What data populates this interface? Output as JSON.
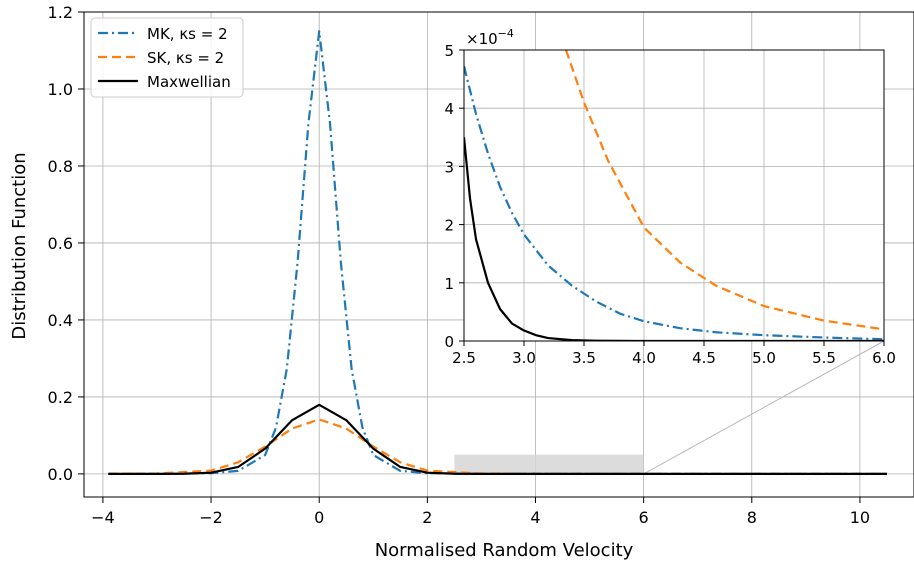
{
  "chart_data": [
    {
      "type": "line",
      "xlabel": "Normalised Random Velocity",
      "ylabel": "Distribution Function",
      "xlim": [
        -4.35,
        11.0
      ],
      "ylim": [
        -0.06,
        1.2
      ],
      "xticks": [
        -4,
        -2,
        0,
        2,
        4,
        6,
        8,
        10
      ],
      "xtick_labels": [
        "−4",
        "−2",
        "0",
        "2",
        "4",
        "6",
        "8",
        "10"
      ],
      "yticks": [
        0.0,
        0.2,
        0.4,
        0.6,
        0.8,
        1.0,
        1.2
      ],
      "ytick_labels": [
        "0.0",
        "0.2",
        "0.4",
        "0.6",
        "0.8",
        "1.0",
        "1.2"
      ],
      "grid": true,
      "legend_position": "top-left",
      "series": [
        {
          "name": "MK, κs = 2",
          "color": "#1f77b4",
          "style": "dash-dot",
          "x": [
            -3.9,
            -3,
            -2,
            -1.5,
            -1,
            -0.8,
            -0.6,
            -0.4,
            -0.2,
            0,
            0.2,
            0.4,
            0.6,
            0.8,
            1,
            1.5,
            2,
            3,
            4,
            6,
            8,
            10.5
          ],
          "y": [
            5e-05,
            0.0002,
            0.0019,
            0.0078,
            0.049,
            0.12,
            0.272,
            0.55,
            0.91,
            1.15,
            0.91,
            0.55,
            0.272,
            0.12,
            0.049,
            0.0078,
            0.0019,
            0.00016,
            3e-05,
            2e-06,
            3e-07,
            1e-07
          ]
        },
        {
          "name": "SK, κs = 2",
          "color": "#ff7f0e",
          "style": "dashed",
          "x": [
            -3.9,
            -3,
            -2,
            -1.5,
            -1,
            -0.5,
            0,
            0.5,
            1,
            1.5,
            2,
            3,
            4,
            6,
            8,
            10.5
          ],
          "y": [
            0.0002,
            0.001,
            0.0086,
            0.03,
            0.071,
            0.118,
            0.1415,
            0.118,
            0.071,
            0.03,
            0.0086,
            0.001,
            0.0002,
            2e-05,
            4e-06,
            1e-06
          ]
        },
        {
          "name": "Maxwellian",
          "color": "#000000",
          "style": "solid",
          "x": [
            -3.9,
            -3,
            -2.5,
            -2,
            -1.5,
            -1,
            -0.5,
            0,
            0.5,
            1,
            1.5,
            2,
            2.5,
            3,
            4,
            6,
            8,
            10.5
          ],
          "y": [
            1e-07,
            2.5e-05,
            0.00035,
            0.0032,
            0.018,
            0.0656,
            0.1396,
            0.1795,
            0.1396,
            0.0656,
            0.018,
            0.0032,
            0.00035,
            2.5e-05,
            1e-07,
            0,
            0,
            0
          ]
        }
      ],
      "zoom_region": {
        "x": [
          2.5,
          6.0
        ],
        "y": [
          0.0,
          0.0005
        ]
      }
    },
    {
      "type": "line",
      "role": "inset",
      "xlim": [
        2.5,
        6.0
      ],
      "ylim": [
        0,
        5
      ],
      "y_scale_label": "×10",
      "y_scale_exponent": "−4",
      "xticks": [
        2.5,
        3.0,
        3.5,
        4.0,
        4.5,
        5.0,
        5.5,
        6.0
      ],
      "xtick_labels": [
        "2.5",
        "3.0",
        "3.5",
        "4.0",
        "4.5",
        "5.0",
        "5.5",
        "6.0"
      ],
      "yticks": [
        0,
        1,
        2,
        3,
        4,
        5
      ],
      "ytick_labels": [
        "0",
        "1",
        "2",
        "3",
        "4",
        "5"
      ],
      "grid": true,
      "series": [
        {
          "name": "MK, κs = 2",
          "color": "#1f77b4",
          "style": "dash-dot",
          "x": [
            2.5,
            2.6,
            2.7,
            2.8,
            2.9,
            3.0,
            3.2,
            3.4,
            3.6,
            3.8,
            4.0,
            4.3,
            4.6,
            5.0,
            5.5,
            6.0
          ],
          "y": [
            4.72,
            3.9,
            3.22,
            2.65,
            2.2,
            1.83,
            1.3,
            0.95,
            0.68,
            0.47,
            0.34,
            0.22,
            0.15,
            0.1,
            0.06,
            0.03
          ]
        },
        {
          "name": "SK, κs = 2",
          "color": "#ff7f0e",
          "style": "dashed",
          "x": [
            3.35,
            3.5,
            3.7,
            4.0,
            4.3,
            4.6,
            5.0,
            5.5,
            6.0
          ],
          "y": [
            5.0,
            4.1,
            3.1,
            1.95,
            1.35,
            0.95,
            0.6,
            0.35,
            0.2
          ]
        },
        {
          "name": "Maxwellian",
          "color": "#000000",
          "style": "solid",
          "x": [
            2.5,
            2.55,
            2.6,
            2.7,
            2.8,
            2.9,
            3.0,
            3.1,
            3.2,
            3.4,
            3.6,
            4.0,
            5.0,
            6.0
          ],
          "y": [
            3.5,
            2.45,
            1.75,
            1.0,
            0.55,
            0.3,
            0.18,
            0.1,
            0.05,
            0.015,
            0.005,
            0.0005,
            0,
            0
          ]
        }
      ]
    }
  ]
}
